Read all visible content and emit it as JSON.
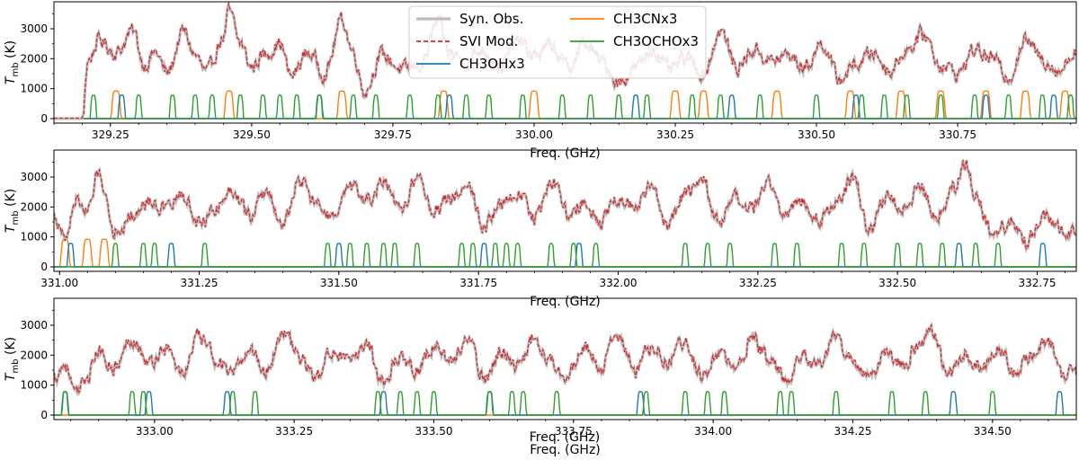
{
  "chart_data": [
    {
      "type": "line",
      "panel": 1,
      "xlim": [
        329.15,
        330.96
      ],
      "ylim": [
        -150,
        3900
      ],
      "xticks": [
        "329.25",
        "329.50",
        "329.75",
        "330.00",
        "330.25",
        "330.50",
        "330.75"
      ],
      "xtick_values": [
        329.25,
        329.5,
        329.75,
        330.0,
        330.25,
        330.5,
        330.75
      ],
      "yticks": [
        "0",
        "1000",
        "2000",
        "3000"
      ],
      "ytick_values": [
        0,
        1000,
        2000,
        3000
      ],
      "xlabel": "Freq. (GHz)",
      "ylabel": "T_mb (K)",
      "obs_start": 329.2,
      "obs_anchors": [
        [
          329.2,
          0
        ],
        [
          329.21,
          1900
        ],
        [
          329.23,
          2600
        ],
        [
          329.26,
          2200
        ],
        [
          329.29,
          2900
        ],
        [
          329.31,
          1800
        ],
        [
          329.33,
          2200
        ],
        [
          329.35,
          1500
        ],
        [
          329.38,
          2900
        ],
        [
          329.4,
          2100
        ],
        [
          329.42,
          1500
        ],
        [
          329.45,
          2700
        ],
        [
          329.46,
          3550
        ],
        [
          329.48,
          2500
        ],
        [
          329.5,
          1700
        ],
        [
          329.52,
          2100
        ],
        [
          329.55,
          2500
        ],
        [
          329.57,
          1400
        ],
        [
          329.6,
          2200
        ],
        [
          329.63,
          1500
        ],
        [
          329.66,
          3300
        ],
        [
          329.68,
          2200
        ],
        [
          329.7,
          900
        ],
        [
          329.73,
          2100
        ],
        [
          329.77,
          1600
        ],
        [
          329.8,
          1800
        ],
        [
          329.83,
          3200
        ],
        [
          329.85,
          2200
        ],
        [
          329.88,
          1900
        ],
        [
          329.91,
          2300
        ],
        [
          329.94,
          1700
        ],
        [
          329.97,
          2600
        ],
        [
          330.0,
          2100
        ],
        [
          330.03,
          2400
        ],
        [
          330.06,
          1700
        ],
        [
          330.09,
          2500
        ],
        [
          330.12,
          1900
        ],
        [
          330.15,
          1200
        ],
        [
          330.18,
          1700
        ],
        [
          330.21,
          2300
        ],
        [
          330.24,
          1600
        ],
        [
          330.27,
          2000
        ],
        [
          330.3,
          1500
        ],
        [
          330.33,
          2900
        ],
        [
          330.36,
          1700
        ],
        [
          330.39,
          2300
        ],
        [
          330.42,
          1900
        ],
        [
          330.45,
          2100
        ],
        [
          330.48,
          1700
        ],
        [
          330.51,
          2500
        ],
        [
          330.54,
          1300
        ],
        [
          330.57,
          1800
        ],
        [
          330.6,
          2200
        ],
        [
          330.63,
          1600
        ],
        [
          330.66,
          2300
        ],
        [
          330.69,
          2800
        ],
        [
          330.72,
          1800
        ],
        [
          330.75,
          1500
        ],
        [
          330.78,
          2300
        ],
        [
          330.81,
          2000
        ],
        [
          330.84,
          1400
        ],
        [
          330.87,
          2600
        ],
        [
          330.9,
          2000
        ],
        [
          330.93,
          1600
        ],
        [
          330.96,
          2300
        ]
      ],
      "ch3cn_lines": [
        329.26,
        329.46,
        329.66,
        329.84,
        330.0,
        330.25,
        330.3,
        330.43,
        330.56,
        330.65,
        330.72,
        330.8,
        330.87,
        330.94
      ],
      "ch3oh_lines": [
        329.27,
        329.62,
        329.85,
        330.18,
        330.35,
        330.57,
        330.8,
        330.92
      ],
      "ch3ocho_lines": [
        329.22,
        329.3,
        329.36,
        329.4,
        329.43,
        329.48,
        329.52,
        329.55,
        329.58,
        329.62,
        329.68,
        329.72,
        329.78,
        329.83,
        329.88,
        329.92,
        329.98,
        330.05,
        330.1,
        330.15,
        330.2,
        330.28,
        330.33,
        330.4,
        330.5,
        330.58,
        330.62,
        330.66,
        330.72,
        330.78,
        330.84,
        330.9,
        330.95
      ]
    },
    {
      "type": "line",
      "panel": 2,
      "xlim": [
        330.99,
        332.82
      ],
      "ylim": [
        -150,
        3900
      ],
      "xticks": [
        "331.00",
        "331.25",
        "331.50",
        "331.75",
        "332.00",
        "332.25",
        "332.50",
        "332.75"
      ],
      "xtick_values": [
        331.0,
        331.25,
        331.5,
        331.75,
        332.0,
        332.25,
        332.5,
        332.75
      ],
      "yticks": [
        "0",
        "1000",
        "2000",
        "3000"
      ],
      "ytick_values": [
        0,
        1000,
        2000,
        3000
      ],
      "xlabel": "Freq. (GHz)",
      "ylabel": "T_mb (K)",
      "obs_start": 330.99,
      "obs_anchors": [
        [
          330.99,
          1700
        ],
        [
          331.01,
          900
        ],
        [
          331.03,
          2300
        ],
        [
          331.05,
          1800
        ],
        [
          331.07,
          3100
        ],
        [
          331.1,
          1200
        ],
        [
          331.13,
          1700
        ],
        [
          331.16,
          2200
        ],
        [
          331.19,
          1900
        ],
        [
          331.22,
          2400
        ],
        [
          331.25,
          1400
        ],
        [
          331.28,
          2000
        ],
        [
          331.31,
          2600
        ],
        [
          331.34,
          1700
        ],
        [
          331.37,
          2500
        ],
        [
          331.4,
          1400
        ],
        [
          331.43,
          2900
        ],
        [
          331.46,
          2100
        ],
        [
          331.49,
          1600
        ],
        [
          331.52,
          2600
        ],
        [
          331.55,
          2200
        ],
        [
          331.58,
          2800
        ],
        [
          331.61,
          1800
        ],
        [
          331.64,
          3000
        ],
        [
          331.67,
          1900
        ],
        [
          331.7,
          2300
        ],
        [
          331.73,
          2800
        ],
        [
          331.76,
          1400
        ],
        [
          331.79,
          2000
        ],
        [
          331.82,
          2500
        ],
        [
          331.85,
          1600
        ],
        [
          331.88,
          2900
        ],
        [
          331.91,
          1800
        ],
        [
          331.94,
          2200
        ],
        [
          331.97,
          1500
        ],
        [
          332.0,
          2300
        ],
        [
          332.03,
          2000
        ],
        [
          332.06,
          2600
        ],
        [
          332.09,
          1400
        ],
        [
          332.12,
          2400
        ],
        [
          332.15,
          2900
        ],
        [
          332.18,
          1500
        ],
        [
          332.21,
          2200
        ],
        [
          332.24,
          1900
        ],
        [
          332.27,
          2800
        ],
        [
          332.3,
          1700
        ],
        [
          332.33,
          2300
        ],
        [
          332.36,
          1600
        ],
        [
          332.39,
          2200
        ],
        [
          332.42,
          2900
        ],
        [
          332.45,
          1200
        ],
        [
          332.48,
          2300
        ],
        [
          332.51,
          2000
        ],
        [
          332.54,
          2700
        ],
        [
          332.57,
          1700
        ],
        [
          332.6,
          2600
        ],
        [
          332.62,
          3500
        ],
        [
          332.64,
          2300
        ],
        [
          332.67,
          1100
        ],
        [
          332.7,
          1400
        ],
        [
          332.73,
          900
        ],
        [
          332.76,
          1600
        ],
        [
          332.79,
          1300
        ],
        [
          332.82,
          1200
        ]
      ],
      "ch3cn_lines": [
        331.01,
        331.05,
        331.08
      ],
      "ch3oh_lines": [
        331.02,
        331.2,
        331.5,
        331.76,
        331.93,
        332.61,
        332.76
      ],
      "ch3ocho_lines": [
        331.1,
        331.15,
        331.17,
        331.26,
        331.48,
        331.52,
        331.55,
        331.58,
        331.6,
        331.64,
        331.72,
        331.74,
        331.78,
        331.8,
        331.82,
        331.88,
        331.92,
        331.96,
        332.12,
        332.16,
        332.2,
        332.28,
        332.32,
        332.4,
        332.44,
        332.5,
        332.54,
        332.58,
        332.64,
        332.68
      ]
    },
    {
      "type": "line",
      "panel": 3,
      "xlim": [
        332.82,
        334.65
      ],
      "ylim": [
        -150,
        3900
      ],
      "xticks": [
        "333.00",
        "333.25",
        "333.50",
        "333.75",
        "334.00",
        "334.25",
        "334.50"
      ],
      "xtick_values": [
        333.0,
        333.25,
        333.5,
        333.75,
        334.0,
        334.25,
        334.5
      ],
      "yticks": [
        "0",
        "1000",
        "2000",
        "3000"
      ],
      "ytick_values": [
        0,
        1000,
        2000,
        3000
      ],
      "xlabel": "Freq. (GHz)",
      "ylabel": "T_mb (K)",
      "obs_start": 332.82,
      "obs_anchors": [
        [
          332.82,
          1300
        ],
        [
          332.84,
          1700
        ],
        [
          332.86,
          600
        ],
        [
          332.88,
          1300
        ],
        [
          332.9,
          2100
        ],
        [
          332.93,
          1600
        ],
        [
          332.96,
          2600
        ],
        [
          332.99,
          1700
        ],
        [
          333.02,
          2200
        ],
        [
          333.05,
          1400
        ],
        [
          333.08,
          2600
        ],
        [
          333.11,
          1900
        ],
        [
          333.14,
          1300
        ],
        [
          333.17,
          2200
        ],
        [
          333.2,
          1500
        ],
        [
          333.23,
          2800
        ],
        [
          333.26,
          1900
        ],
        [
          333.29,
          1200
        ],
        [
          333.32,
          2200
        ],
        [
          333.35,
          1700
        ],
        [
          333.38,
          2400
        ],
        [
          333.41,
          1100
        ],
        [
          333.44,
          2000
        ],
        [
          333.47,
          1500
        ],
        [
          333.5,
          2300
        ],
        [
          333.53,
          1800
        ],
        [
          333.56,
          2500
        ],
        [
          333.59,
          1200
        ],
        [
          333.62,
          2100
        ],
        [
          333.65,
          1600
        ],
        [
          333.68,
          2600
        ],
        [
          333.71,
          1800
        ],
        [
          333.74,
          1400
        ],
        [
          333.77,
          2200
        ],
        [
          333.8,
          1600
        ],
        [
          333.83,
          2700
        ],
        [
          333.86,
          1400
        ],
        [
          333.89,
          2300
        ],
        [
          333.92,
          1800
        ],
        [
          333.95,
          2500
        ],
        [
          333.98,
          1300
        ],
        [
          334.01,
          2000
        ],
        [
          334.04,
          1500
        ],
        [
          334.07,
          2500
        ],
        [
          334.1,
          1900
        ],
        [
          334.13,
          1200
        ],
        [
          334.16,
          2000
        ],
        [
          334.19,
          1600
        ],
        [
          334.22,
          2600
        ],
        [
          334.25,
          1800
        ],
        [
          334.28,
          1200
        ],
        [
          334.31,
          2100
        ],
        [
          334.34,
          1700
        ],
        [
          334.37,
          2400
        ],
        [
          334.39,
          2850
        ],
        [
          334.42,
          1300
        ],
        [
          334.45,
          2100
        ],
        [
          334.48,
          1600
        ],
        [
          334.51,
          2300
        ],
        [
          334.54,
          1400
        ],
        [
          334.57,
          2000
        ],
        [
          334.6,
          2400
        ],
        [
          334.63,
          1200
        ],
        [
          334.65,
          1500
        ]
      ],
      "ch3cn_lines": [],
      "ch3oh_lines": [
        332.84,
        332.99,
        333.13,
        333.41,
        333.6,
        333.87,
        334.43,
        334.62
      ],
      "ch3ocho_lines": [
        332.84,
        332.96,
        332.98,
        333.14,
        333.18,
        333.4,
        333.44,
        333.47,
        333.5,
        333.6,
        333.64,
        333.66,
        333.72,
        333.88,
        333.95,
        333.99,
        334.02,
        334.12,
        334.14,
        334.22,
        334.32,
        334.38,
        334.5
      ]
    }
  ],
  "legend": {
    "entries": [
      {
        "label": "Syn. Obs.",
        "color": "#bdbdbd",
        "style": "solid-thick"
      },
      {
        "label": "CH3CNx3",
        "color": "#ff7f0e",
        "style": "solid"
      },
      {
        "label": "SVI Mod.",
        "color": "#d62728",
        "style": "dashed"
      },
      {
        "label": "CH3OCHOx3",
        "color": "#2ca02c",
        "style": "solid"
      },
      {
        "label": "CH3OHx3",
        "color": "#1f77b4",
        "style": "solid"
      }
    ]
  },
  "axis_text": {
    "ylabel_main": "T",
    "ylabel_sub": "mb",
    "ylabel_unit": " (K)",
    "xlabel": "Freq. (GHz)"
  },
  "colors": {
    "obs": "#bdbdbd",
    "model": "#d62728",
    "ch3cn": "#ff7f0e",
    "ch3oh": "#1f77b4",
    "ch3ocho": "#2ca02c"
  }
}
